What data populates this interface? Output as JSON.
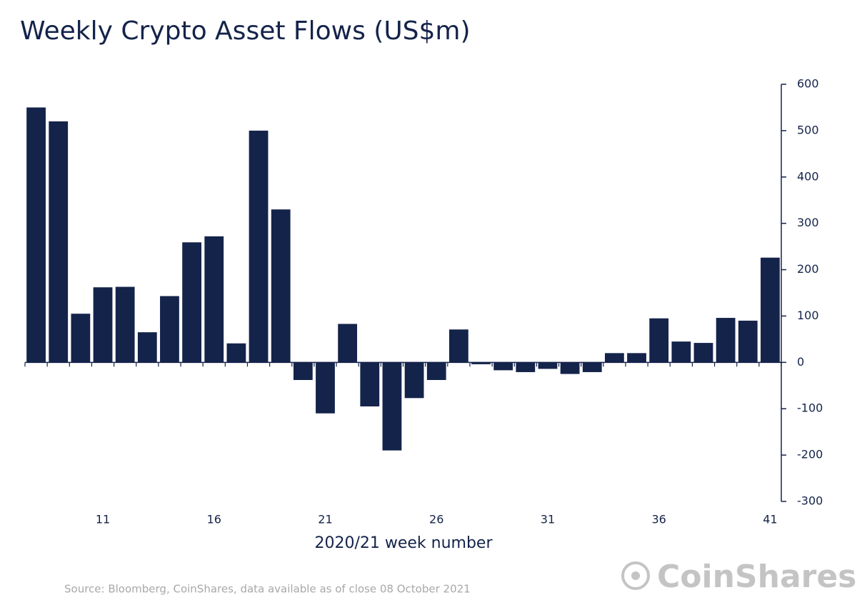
{
  "chart_data": {
    "type": "bar",
    "title": "Weekly Crypto Asset Flows (US$m)",
    "x_label": "2020/21 week number",
    "source": "Source: Bloomberg, CoinShares, data available as of close 08 October 2021",
    "brand": "CoinShares",
    "categories": [
      null,
      null,
      null,
      11,
      null,
      null,
      null,
      null,
      16,
      null,
      null,
      null,
      null,
      21,
      null,
      null,
      null,
      null,
      26,
      null,
      null,
      null,
      null,
      31,
      null,
      null,
      null,
      null,
      36,
      null,
      null,
      null,
      null,
      41
    ],
    "values": [
      550,
      520,
      105,
      162,
      163,
      65,
      143,
      259,
      272,
      41,
      500,
      330,
      -38,
      -110,
      83,
      -95,
      -190,
      -77,
      -38,
      71,
      -4,
      -17,
      -21,
      -14,
      -25,
      -21,
      20,
      20,
      95,
      45,
      42,
      96,
      90,
      226
    ],
    "color": "#14234a",
    "ylim": [
      -300,
      600
    ],
    "yticks": [
      -300,
      -200,
      -100,
      0,
      100,
      200,
      300,
      400,
      500,
      600
    ],
    "grid": false
  }
}
